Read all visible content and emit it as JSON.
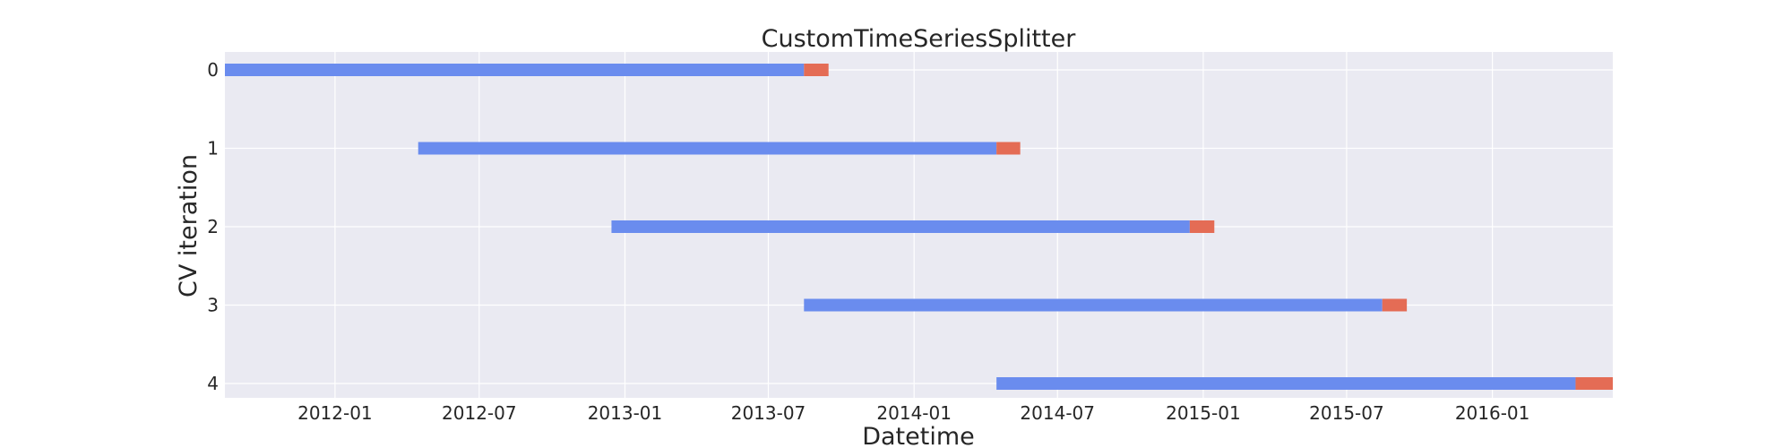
{
  "chart_data": {
    "type": "gantt",
    "title": "CustomTimeSeriesSplitter",
    "xlabel": "Datetime",
    "ylabel": "CV iteration",
    "x_type": "date",
    "xlim": [
      "2011-08-15",
      "2016-06-01"
    ],
    "x_ticks": [
      "2012-01-01",
      "2012-07-01",
      "2013-01-01",
      "2013-07-01",
      "2014-01-01",
      "2014-07-01",
      "2015-01-01",
      "2015-07-01",
      "2016-01-01"
    ],
    "x_tick_labels": [
      "2012-01",
      "2012-07",
      "2013-01",
      "2013-07",
      "2014-01",
      "2014-07",
      "2015-01",
      "2015-07",
      "2016-01"
    ],
    "y_categories": [
      "0",
      "1",
      "2",
      "3",
      "4"
    ],
    "grid": true,
    "colors": {
      "train": "#6a8cee",
      "test": "#e46c55",
      "background": "#eaeaf2",
      "grid": "#ffffff"
    },
    "folds": [
      {
        "iteration": "0",
        "train": [
          "2011-08-15",
          "2013-08-15"
        ],
        "test": [
          "2013-08-15",
          "2013-09-15"
        ]
      },
      {
        "iteration": "1",
        "train": [
          "2012-04-15",
          "2014-04-15"
        ],
        "test": [
          "2014-04-15",
          "2014-05-15"
        ]
      },
      {
        "iteration": "2",
        "train": [
          "2012-12-15",
          "2014-12-15"
        ],
        "test": [
          "2014-12-15",
          "2015-01-15"
        ]
      },
      {
        "iteration": "3",
        "train": [
          "2013-08-15",
          "2015-08-15"
        ],
        "test": [
          "2015-08-15",
          "2015-09-15"
        ]
      },
      {
        "iteration": "4",
        "train": [
          "2014-04-15",
          "2016-04-15"
        ],
        "test": [
          "2016-04-15",
          "2016-06-01"
        ]
      }
    ]
  }
}
